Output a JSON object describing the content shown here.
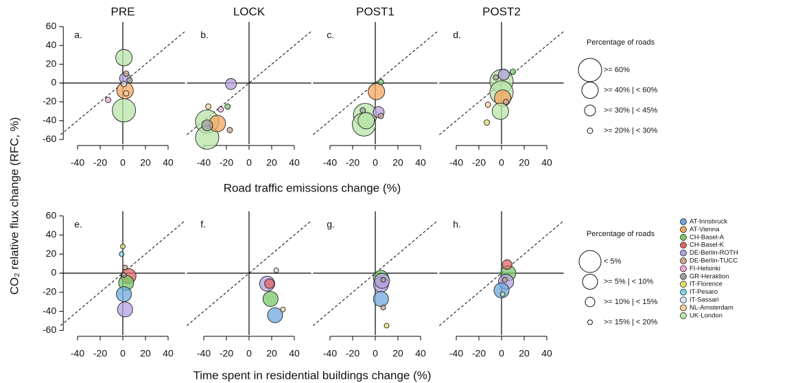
{
  "ylabel": "CO₂ relative flux change (RFC, %)",
  "xlabels": [
    "Road traffic emissions change (%)",
    "Time spent in residential buildings change (%)"
  ],
  "size_legends": [
    {
      "title": "Percentage of roads",
      "items": [
        {
          "label": ">= 60%",
          "value": 60
        },
        {
          "label": ">= 40% | < 60%",
          "value": 40
        },
        {
          "label": ">= 30% | < 45%",
          "value": 30
        },
        {
          "label": ">= 20% | < 30%",
          "value": 20
        }
      ]
    },
    {
      "title": "Percentage of roads",
      "items": [
        {
          "label": "< 5%",
          "value": 0
        },
        {
          "label": ">= 5% | < 10%",
          "value": 5
        },
        {
          "label": ">= 10% | < 15%",
          "value": 10
        },
        {
          "label": ">= 15% | < 20%",
          "value": 15
        }
      ]
    }
  ],
  "cities": [
    {
      "name": "AT-Innsbruck",
      "color": "#6fa8dc"
    },
    {
      "name": "AT-Vienna",
      "color": "#f6a560"
    },
    {
      "name": "CH-Basel-A",
      "color": "#78c86a"
    },
    {
      "name": "CH-Basel-K",
      "color": "#e06666"
    },
    {
      "name": "DE-Berlin-ROTH",
      "color": "#b4a0e0"
    },
    {
      "name": "DE-Berlin-TUCC",
      "color": "#c8a690"
    },
    {
      "name": "FI-Helsinki",
      "color": "#f2a6d8"
    },
    {
      "name": "GR-Heraklion",
      "color": "#a0a0a0"
    },
    {
      "name": "IT-Florence",
      "color": "#e4dc6a"
    },
    {
      "name": "IT-Pesaro",
      "color": "#7fd6e6"
    },
    {
      "name": "IT-Sassari",
      "color": "#d8e4f4"
    },
    {
      "name": "NL-Amsterdam",
      "color": "#f8d09c"
    },
    {
      "name": "UK-London",
      "color": "#b8e4a8"
    }
  ],
  "chart_data": [
    {
      "type": "scatter",
      "title": "PRE",
      "tag": "a.",
      "xlim": [
        -55,
        55
      ],
      "ylim": [
        -65,
        65
      ],
      "xticks": [
        -40,
        -20,
        0,
        20,
        40
      ],
      "yticks": [
        60,
        40,
        20,
        0,
        -20,
        -40,
        -60
      ],
      "points": [
        {
          "city": "UK-London",
          "x": 1,
          "y": 27,
          "size": 40
        },
        {
          "city": "UK-London",
          "x": 1,
          "y": -29,
          "size": 60
        },
        {
          "city": "AT-Vienna",
          "x": 2,
          "y": -8,
          "size": 40
        },
        {
          "city": "DE-Berlin-ROTH",
          "x": 2,
          "y": 5,
          "size": 30
        },
        {
          "city": "DE-Berlin-TUCC",
          "x": 3,
          "y": 10,
          "size": 20
        },
        {
          "city": "FI-Helsinki",
          "x": -13,
          "y": -18,
          "size": 20
        },
        {
          "city": "IT-Sassari",
          "x": 1,
          "y": -1,
          "size": 20
        },
        {
          "city": "NL-Amsterdam",
          "x": 3,
          "y": -11,
          "size": 20
        },
        {
          "city": "GR-Heraklion",
          "x": 6,
          "y": 3,
          "size": 20
        }
      ]
    },
    {
      "type": "scatter",
      "title": "LOCK",
      "tag": "b.",
      "xlim": [
        -55,
        55
      ],
      "ylim": [
        -65,
        65
      ],
      "xticks": [
        -40,
        -20,
        0,
        20,
        40
      ],
      "points": [
        {
          "city": "DE-Berlin-ROTH",
          "x": -16,
          "y": -1,
          "size": 30
        },
        {
          "city": "UK-London",
          "x": -37,
          "y": -41,
          "size": 60
        },
        {
          "city": "UK-London",
          "x": -37,
          "y": -58,
          "size": 60
        },
        {
          "city": "AT-Vienna",
          "x": -28,
          "y": -43,
          "size": 40
        },
        {
          "city": "GR-Heraklion",
          "x": -37,
          "y": -45,
          "size": 30
        },
        {
          "city": "NL-Amsterdam",
          "x": -36,
          "y": -25,
          "size": 20
        },
        {
          "city": "FI-Helsinki",
          "x": -25,
          "y": -28,
          "size": 20
        },
        {
          "city": "CH-Basel-A",
          "x": -19,
          "y": -25,
          "size": 20
        },
        {
          "city": "DE-Berlin-TUCC",
          "x": -17,
          "y": -50,
          "size": 20
        }
      ]
    },
    {
      "type": "scatter",
      "title": "POST1",
      "tag": "c.",
      "xlim": [
        -55,
        55
      ],
      "ylim": [
        -65,
        65
      ],
      "xticks": [
        -40,
        -20,
        0,
        20,
        40
      ],
      "points": [
        {
          "city": "AT-Vienna",
          "x": 1,
          "y": -9,
          "size": 40
        },
        {
          "city": "CH-Basel-A",
          "x": 5,
          "y": 1,
          "size": 20
        },
        {
          "city": "UK-London",
          "x": -9,
          "y": -34,
          "size": 60
        },
        {
          "city": "UK-London",
          "x": -10,
          "y": -44,
          "size": 60
        },
        {
          "city": "UK-London",
          "x": -8,
          "y": -40,
          "size": 40
        },
        {
          "city": "DE-Berlin-ROTH",
          "x": 3,
          "y": -31,
          "size": 30
        },
        {
          "city": "GR-Heraklion",
          "x": -11,
          "y": -29,
          "size": 20
        },
        {
          "city": "DE-Berlin-TUCC",
          "x": 5,
          "y": -35,
          "size": 20
        }
      ]
    },
    {
      "type": "scatter",
      "title": "POST2",
      "tag": "d.",
      "xlim": [
        -55,
        55
      ],
      "ylim": [
        -65,
        65
      ],
      "xticks": [
        -40,
        -20,
        0,
        20,
        40
      ],
      "points": [
        {
          "city": "UK-London",
          "x": 0,
          "y": 2,
          "size": 60
        },
        {
          "city": "UK-London",
          "x": 0,
          "y": -10,
          "size": 60
        },
        {
          "city": "DE-Berlin-ROTH",
          "x": 2,
          "y": 9,
          "size": 30
        },
        {
          "city": "CH-Basel-A",
          "x": 10,
          "y": 12,
          "size": 20
        },
        {
          "city": "AT-Vienna",
          "x": 1,
          "y": -16,
          "size": 40
        },
        {
          "city": "UK-London",
          "x": -1,
          "y": -30,
          "size": 40
        },
        {
          "city": "NL-Amsterdam",
          "x": -12,
          "y": -23,
          "size": 20
        },
        {
          "city": "IT-Florence",
          "x": -13,
          "y": -42,
          "size": 20
        },
        {
          "city": "DE-Berlin-TUCC",
          "x": 4,
          "y": -20,
          "size": 20
        },
        {
          "city": "GR-Heraklion",
          "x": -5,
          "y": 6,
          "size": 20
        }
      ]
    },
    {
      "type": "scatter",
      "tag": "e.",
      "xlim": [
        -55,
        55
      ],
      "ylim": [
        -65,
        65
      ],
      "xticks": [
        -40,
        -20,
        0,
        20,
        40
      ],
      "yticks": [
        60,
        40,
        20,
        0,
        -20,
        -40,
        -60
      ],
      "points": [
        {
          "city": "IT-Florence",
          "x": 0,
          "y": 28,
          "size": 15
        },
        {
          "city": "IT-Pesaro",
          "x": -1,
          "y": 20,
          "size": 15
        },
        {
          "city": "DE-Berlin-TUCC",
          "x": 2,
          "y": 6,
          "size": 15
        },
        {
          "city": "CH-Basel-K",
          "x": 5,
          "y": -3,
          "size": 5
        },
        {
          "city": "CH-Basel-A",
          "x": 3,
          "y": -10,
          "size": 5
        },
        {
          "city": "AT-Innsbruck",
          "x": 1,
          "y": -22,
          "size": 5
        },
        {
          "city": "DE-Berlin-ROTH",
          "x": 2,
          "y": -38,
          "size": 5
        },
        {
          "city": "GR-Heraklion",
          "x": 1,
          "y": -2,
          "size": 15
        }
      ]
    },
    {
      "type": "scatter",
      "tag": "f.",
      "xlim": [
        -55,
        55
      ],
      "ylim": [
        -65,
        65
      ],
      "xticks": [
        -40,
        -20,
        0,
        20,
        40
      ],
      "points": [
        {
          "city": "IT-Sassari",
          "x": 24,
          "y": 3,
          "size": 15
        },
        {
          "city": "DE-Berlin-ROTH",
          "x": 16,
          "y": -11,
          "size": 5
        },
        {
          "city": "CH-Basel-K",
          "x": 18,
          "y": -11,
          "size": 10
        },
        {
          "city": "CH-Basel-A",
          "x": 19,
          "y": -27,
          "size": 5
        },
        {
          "city": "AT-Innsbruck",
          "x": 23,
          "y": -44,
          "size": 5
        },
        {
          "city": "NL-Amsterdam",
          "x": 30,
          "y": -38,
          "size": 15
        }
      ]
    },
    {
      "type": "scatter",
      "tag": "g.",
      "xlim": [
        -55,
        55
      ],
      "ylim": [
        -65,
        65
      ],
      "xticks": [
        -40,
        -20,
        0,
        20,
        40
      ],
      "points": [
        {
          "city": "CH-Basel-A",
          "x": 5,
          "y": -5,
          "size": 5
        },
        {
          "city": "DE-Berlin-ROTH",
          "x": 5,
          "y": -12,
          "size": 5
        },
        {
          "city": "DE-Berlin-ROTH",
          "x": 6,
          "y": -8,
          "size": 5
        },
        {
          "city": "GR-Heraklion",
          "x": 7,
          "y": -7,
          "size": 15
        },
        {
          "city": "AT-Innsbruck",
          "x": 5,
          "y": -27,
          "size": 5
        },
        {
          "city": "DE-Berlin-TUCC",
          "x": 7,
          "y": -36,
          "size": 15
        },
        {
          "city": "IT-Florence",
          "x": 10,
          "y": -55,
          "size": 15
        }
      ]
    },
    {
      "type": "scatter",
      "tag": "h.",
      "xlim": [
        -55,
        55
      ],
      "ylim": [
        -65,
        65
      ],
      "xticks": [
        -40,
        -20,
        0,
        20,
        40
      ],
      "points": [
        {
          "city": "CH-Basel-K",
          "x": 5,
          "y": 9,
          "size": 10
        },
        {
          "city": "CH-Basel-A",
          "x": 6,
          "y": 0,
          "size": 5
        },
        {
          "city": "DE-Berlin-ROTH",
          "x": 4,
          "y": -9,
          "size": 5
        },
        {
          "city": "AT-Innsbruck",
          "x": 0,
          "y": -18,
          "size": 5
        },
        {
          "city": "UK-London",
          "x": 1,
          "y": -22,
          "size": 15
        },
        {
          "city": "DE-Berlin-TUCC",
          "x": 3,
          "y": -7,
          "size": 15
        }
      ]
    }
  ]
}
